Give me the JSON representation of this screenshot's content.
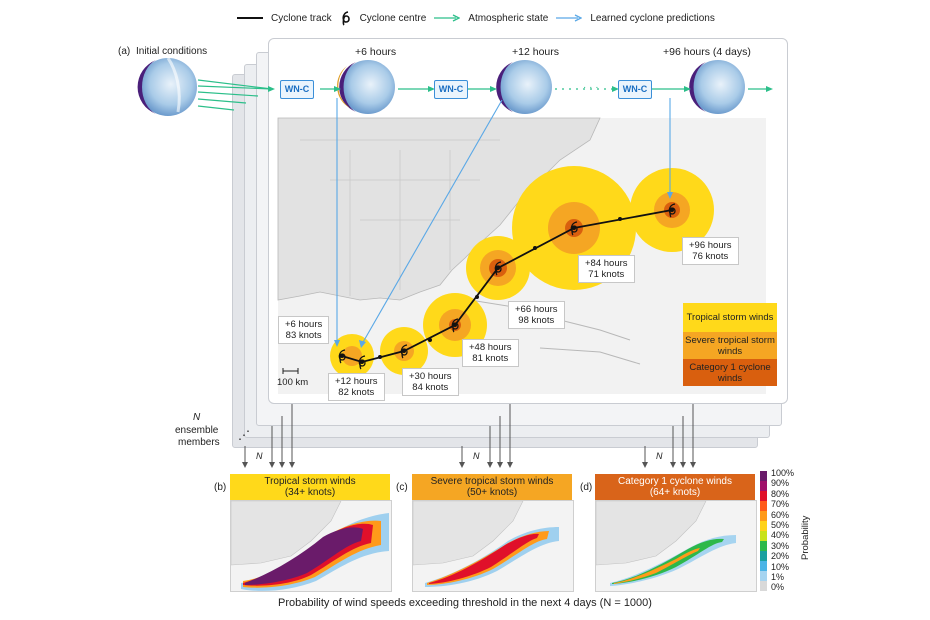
{
  "legend": {
    "track": "Cyclone track",
    "centre": "Cyclone centre",
    "state": "Atmospheric state",
    "learned": "Learned cyclone predictions"
  },
  "panel_a": {
    "tag": "(a)",
    "initial": "Initial conditions",
    "h6": "+6 hours",
    "h12": "+12 hours",
    "h96": "+96 hours (4 days)",
    "model": "WN-C",
    "ellipsis": "· · ·",
    "scale": "100 km",
    "ensemble": [
      "N",
      "ensemble",
      "members"
    ],
    "n": "N"
  },
  "track_labels": [
    {
      "line1": "+6 hours",
      "line2": "83 knots"
    },
    {
      "line1": "+12 hours",
      "line2": "82 knots"
    },
    {
      "line1": "+30 hours",
      "line2": "84 knots"
    },
    {
      "line1": "+48 hours",
      "line2": "81 knots"
    },
    {
      "line1": "+66 hours",
      "line2": "98 knots"
    },
    {
      "line1": "+84 hours",
      "line2": "71 knots"
    },
    {
      "line1": "+96 hours",
      "line2": "76 knots"
    }
  ],
  "wind_key": {
    "tropical": "Tropical storm winds",
    "severe": "Severe tropical storm winds",
    "cat1": "Category 1 cyclone winds",
    "colors": {
      "tropical": "#ffd91a",
      "severe": "#f5a623",
      "cat1": "#d95f0e"
    }
  },
  "panels": [
    {
      "tag": "(b)",
      "title": "Tropical storm winds",
      "sub": "(34+ knots)",
      "color": "#ffd91a"
    },
    {
      "tag": "(c)",
      "title": "Severe tropical storm winds",
      "sub": "(50+ knots)",
      "color": "#f5a623"
    },
    {
      "tag": "(d)",
      "title": "Category 1 cyclone winds",
      "sub": "(64+ knots)",
      "color": "#d9641a"
    }
  ],
  "colorbar": {
    "title": "Probability",
    "ticks": [
      "100%",
      "90%",
      "80%",
      "70%",
      "60%",
      "50%",
      "40%",
      "30%",
      "20%",
      "10%",
      "1%",
      "0%"
    ],
    "colors": [
      "#6a1b6a",
      "#a0106a",
      "#e0102a",
      "#ff5a1a",
      "#ff9a1a",
      "#ffd21a",
      "#c9e21a",
      "#2db84a",
      "#1aa0a0",
      "#4ab4e6",
      "#a6d4f0",
      "#d9d9d9"
    ]
  },
  "caption": "Probability of wind speeds exceeding threshold in the next 4 days (N = 1000)"
}
